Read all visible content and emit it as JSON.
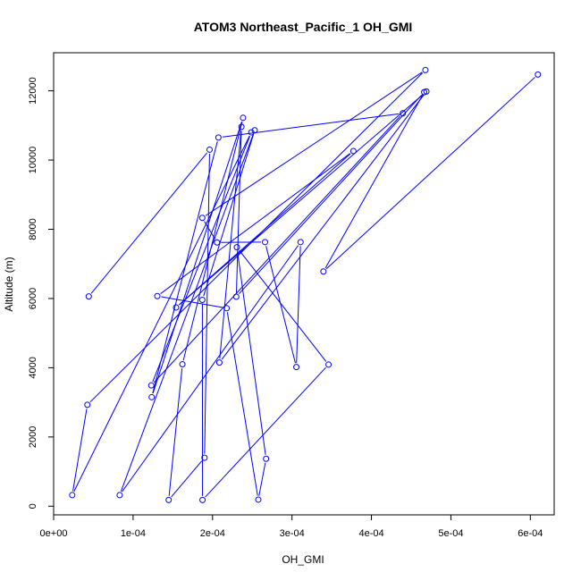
{
  "chart_data": {
    "type": "line",
    "title": "ATOM3 Northeast_Pacific_1 OH_GMI",
    "xlabel": "OH_GMI",
    "ylabel": "Altitude (m)",
    "xlim": [
      0,
      0.00063
    ],
    "ylim": [
      -250,
      13100
    ],
    "x_ticks": [
      {
        "value": 0,
        "label": "0e+00"
      },
      {
        "value": 0.0001,
        "label": "1e-04"
      },
      {
        "value": 0.0002,
        "label": "2e-04"
      },
      {
        "value": 0.0003,
        "label": "3e-04"
      },
      {
        "value": 0.0004,
        "label": "4e-04"
      },
      {
        "value": 0.0005,
        "label": "5e-04"
      },
      {
        "value": 0.0006,
        "label": "6e-04"
      }
    ],
    "y_ticks": [
      {
        "value": 0,
        "label": "0"
      },
      {
        "value": 2000,
        "label": "2000"
      },
      {
        "value": 4000,
        "label": "4000"
      },
      {
        "value": 6000,
        "label": "6000"
      },
      {
        "value": 8000,
        "label": "8000"
      },
      {
        "value": 10000,
        "label": "10000"
      },
      {
        "value": 12000,
        "label": "12000"
      }
    ],
    "grid": false,
    "series_color": "#0000ff",
    "series": [
      {
        "marker": "open-circle",
        "points": [
          {
            "x": 4.42e-05,
            "y": 6060
          },
          {
            "x": 0.0001963,
            "y": 10300
          },
          {
            "x": 0.0001899,
            "y": 1400
          },
          {
            "x": 0.0001448,
            "y": 180
          },
          {
            "x": 0.0001621,
            "y": 4100
          },
          {
            "x": 0.0002384,
            "y": 11220
          },
          {
            "x": 0.0001234,
            "y": 3150
          },
          {
            "x": 0.0002074,
            "y": 10650
          },
          {
            "x": 0.0004395,
            "y": 11350
          },
          {
            "x": 0.0001229,
            "y": 3490
          },
          {
            "x": 0.0002488,
            "y": 10800
          },
          {
            "x": 2.34e-05,
            "y": 320
          },
          {
            "x": 4.25e-05,
            "y": 2930
          },
          {
            "x": 0.0004679,
            "y": 12600
          },
          {
            "x": 0.0001871,
            "y": 8330
          },
          {
            "x": 0.0002056,
            "y": 7620
          },
          {
            "x": 0.0002661,
            "y": 7630
          },
          {
            "x": 0.0003055,
            "y": 4020
          },
          {
            "x": 0.0003108,
            "y": 7630
          },
          {
            "x": 8.31e-05,
            "y": 320
          },
          {
            "x": 0.0002531,
            "y": 10860
          },
          {
            "x": 0.0001872,
            "y": 5960
          },
          {
            "x": 0.0001874,
            "y": 180
          },
          {
            "x": 0.000346,
            "y": 4090
          },
          {
            "x": 0.0002306,
            "y": 7480
          },
          {
            "x": 0.0002674,
            "y": 1370
          },
          {
            "x": 0.0002576,
            "y": 190
          },
          {
            "x": 0.0002178,
            "y": 5720
          },
          {
            "x": 0.0001305,
            "y": 6070
          },
          {
            "x": 0.0003773,
            "y": 10260
          },
          {
            "x": 0.0001541,
            "y": 5740
          },
          {
            "x": 0.0004692,
            "y": 11980
          },
          {
            "x": 0.0002086,
            "y": 4150
          },
          {
            "x": 0.0002364,
            "y": 10960
          },
          {
            "x": 0.0002299,
            "y": 6050
          },
          {
            "x": 0.0004664,
            "y": 11960
          },
          {
            "x": 0.0003396,
            "y": 6780
          },
          {
            "x": 0.0006095,
            "y": 12470
          }
        ]
      }
    ]
  }
}
